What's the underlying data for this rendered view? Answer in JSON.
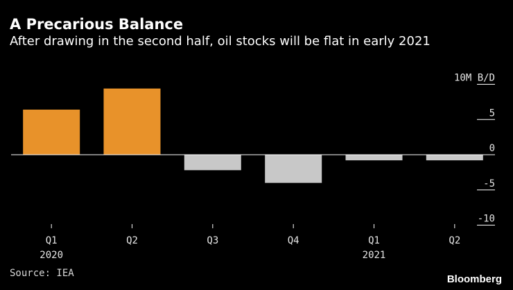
{
  "header": {
    "title": "A Precarious Balance",
    "subtitle": "After drawing in the second half, oil stocks will be flat in early 2021"
  },
  "footer": {
    "source": "Source: IEA",
    "brand": "Bloomberg"
  },
  "colors": {
    "background": "#000000",
    "positive_bar": "#e8922a",
    "negative_bar": "#c8c8c8",
    "axis": "#ffffff"
  },
  "chart_data": {
    "type": "bar",
    "categories": [
      "Q1",
      "Q2",
      "Q3",
      "Q4",
      "Q1",
      "Q2"
    ],
    "year_labels": [
      "2020",
      "",
      "",
      "",
      "2021",
      ""
    ],
    "values": [
      6.4,
      9.4,
      -2.2,
      -4.0,
      -0.8,
      -0.8
    ],
    "ylabel": "10M B/D",
    "ylim": [
      -10,
      10
    ],
    "yticks": [
      -10,
      -5,
      0,
      5
    ],
    "ytick_labels": [
      "-10",
      "-5",
      "0",
      "5"
    ],
    "grid": false,
    "y_axis_side": "right",
    "title": "A Precarious Balance"
  }
}
